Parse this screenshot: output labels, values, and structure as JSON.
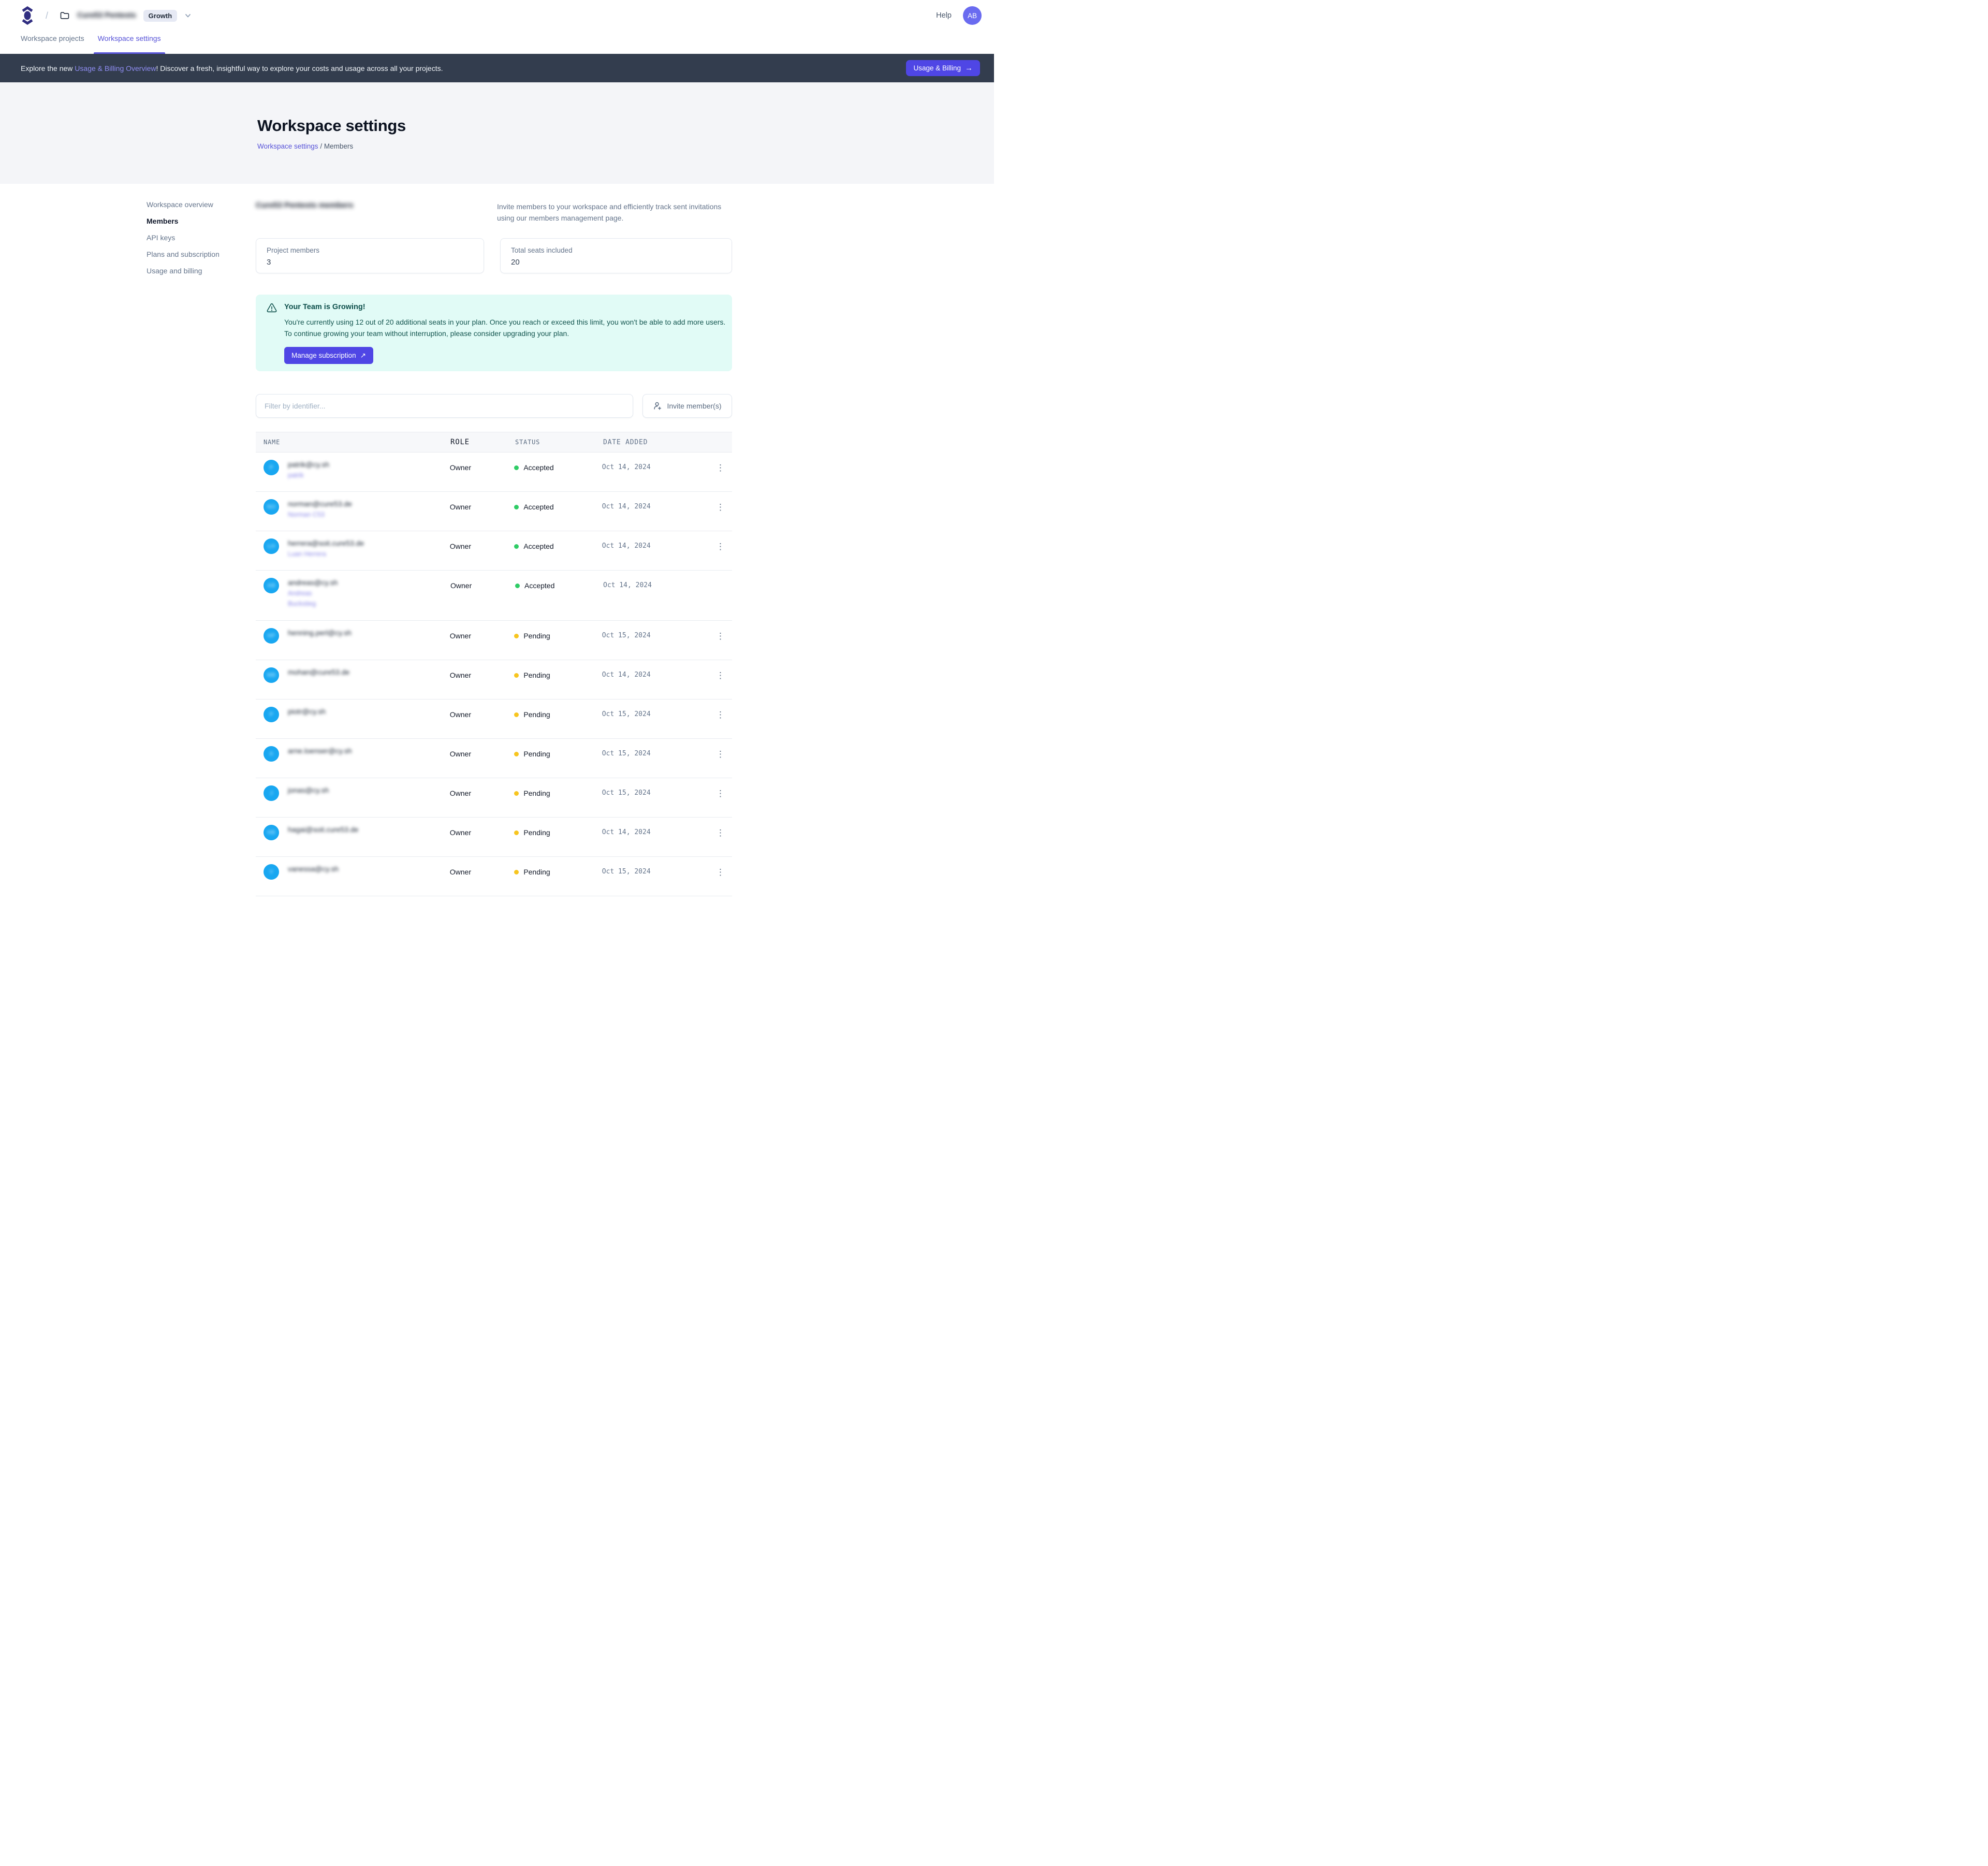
{
  "colors": {
    "accent": "#4f46e5",
    "link_purple": "#5753d8",
    "banner_bg": "#333d4e",
    "notice_bg": "#e1fbf6",
    "notice_text": "#13554f",
    "avatar_blue": "#19a7f1",
    "status_accepted": "#2fcc66",
    "status_pending": "#f7c51f"
  },
  "header": {
    "breadcrumb_separator": "/",
    "workspace_name": "Cure53 Pentests",
    "plan_badge": "Growth",
    "help_label": "Help",
    "avatar_initials": "AB"
  },
  "tabs": {
    "items": [
      {
        "label": "Workspace projects",
        "active": false
      },
      {
        "label": "Workspace settings",
        "active": true
      }
    ]
  },
  "banner": {
    "text_prefix": "Explore the new ",
    "link_text": "Usage & Billing Overview",
    "text_suffix": "! Discover a fresh, insightful way to explore your costs and usage across all your projects.",
    "button_label": "Usage & Billing",
    "button_arrow": "→"
  },
  "hero": {
    "title": "Workspace settings",
    "breadcrumb_link": "Workspace settings",
    "breadcrumb_divider": "/",
    "breadcrumb_current": "Members"
  },
  "sidebar": {
    "items": [
      {
        "label": "Workspace overview",
        "active": false
      },
      {
        "label": "Members",
        "active": true
      },
      {
        "label": "API keys",
        "active": false
      },
      {
        "label": "Plans and subscription",
        "active": false
      },
      {
        "label": "Usage and billing",
        "active": false
      }
    ]
  },
  "members": {
    "heading": "Cure53 Pentests members",
    "heading_redacted": true,
    "intro": "Invite members to your workspace and efficiently track sent invitations using our members management page.",
    "stats": [
      {
        "label": "Project members",
        "value": "3"
      },
      {
        "label": "Total seats included",
        "value": "20"
      }
    ],
    "notice": {
      "title": "Your Team is Growing!",
      "body": "You're currently using 12 out of 20 additional seats in your plan. Once you reach or exceed this limit, you won't be able to add more users. To continue growing your team without interruption, please consider upgrading your plan.",
      "button_label": "Manage subscription",
      "button_arrow": "↗"
    },
    "filter_placeholder": "Filter by identifier...",
    "invite_button_label": "Invite member(s)"
  },
  "table": {
    "columns": [
      "NAME",
      "ROLE",
      "STATUS",
      "DATE ADDED"
    ],
    "identifiers_redacted": true,
    "rows": [
      {
        "email": "patrik@cy.sh",
        "sub": [
          "patrik"
        ],
        "initials": "P",
        "role": "Owner",
        "status": "Accepted",
        "date": "Oct 14, 2024",
        "menu": true,
        "tall": false
      },
      {
        "email": "norman@cure53.de",
        "sub": [
          "Norman C53"
        ],
        "initials": "NO",
        "role": "Owner",
        "status": "Accepted",
        "date": "Oct 14, 2024",
        "menu": true,
        "tall": false
      },
      {
        "email": "herrera@soit.cure53.de",
        "sub": [
          "Luan Herrera"
        ],
        "initials": "LH",
        "role": "Owner",
        "status": "Accepted",
        "date": "Oct 14, 2024",
        "menu": true,
        "tall": false
      },
      {
        "email": "andreas@cy.sh",
        "sub": [
          "Andreas",
          "Buckstieg"
        ],
        "initials": "AB",
        "role": "Owner",
        "status": "Accepted",
        "date": "Oct 14, 2024",
        "menu": false,
        "tall": true
      },
      {
        "email": "henning.perl@cy.sh",
        "sub": [],
        "initials": "HP",
        "role": "Owner",
        "status": "Pending",
        "date": "Oct 15, 2024",
        "menu": true,
        "tall": false
      },
      {
        "email": "mohan@cure53.de",
        "sub": [],
        "initials": "MB",
        "role": "Owner",
        "status": "Pending",
        "date": "Oct 14, 2024",
        "menu": true,
        "tall": false
      },
      {
        "email": "piotr@cy.sh",
        "sub": [],
        "initials": "P",
        "role": "Owner",
        "status": "Pending",
        "date": "Oct 15, 2024",
        "menu": true,
        "tall": false
      },
      {
        "email": "arne.loenser@cy.sh",
        "sub": [],
        "initials": "A",
        "role": "Owner",
        "status": "Pending",
        "date": "Oct 15, 2024",
        "menu": true,
        "tall": false
      },
      {
        "email": "jonas@cy.sh",
        "sub": [],
        "initials": "J",
        "role": "Owner",
        "status": "Pending",
        "date": "Oct 15, 2024",
        "menu": true,
        "tall": false
      },
      {
        "email": "hagai@soit.cure53.de",
        "sub": [],
        "initials": "HB",
        "role": "Owner",
        "status": "Pending",
        "date": "Oct 14, 2024",
        "menu": true,
        "tall": false
      },
      {
        "email": "vanessa@cy.sh",
        "sub": [],
        "initials": "V",
        "role": "Owner",
        "status": "Pending",
        "date": "Oct 15, 2024",
        "menu": true,
        "tall": false
      }
    ],
    "status_colors": {
      "Accepted": "#2fcc66",
      "Pending": "#f7c51f"
    }
  }
}
